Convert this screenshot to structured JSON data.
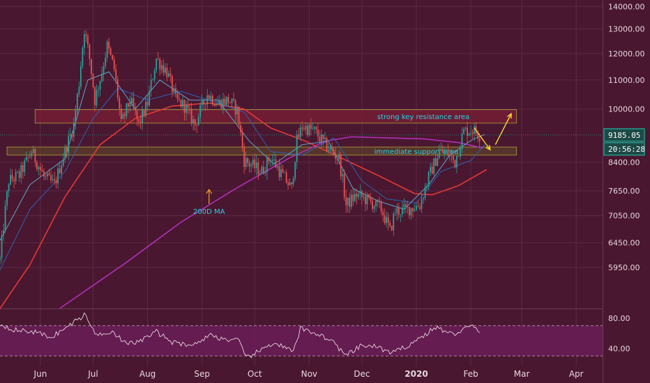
{
  "colors": {
    "background": "#4a1730",
    "grid": "#5c2a42",
    "candle_up": "#26a69a",
    "candle_down": "#ef5350",
    "ma_fast": "#5aa7c9",
    "ma_mid": "#2a63b8",
    "ma_slow": "#e53935",
    "ma_200": "#b030b8",
    "rsi_line": "#e8d6e0",
    "rsi_band": "#6a1d57",
    "resistance_fill": "#7a1f36",
    "support_fill": "#5c3f2a",
    "zone_border": "#9a8a3a",
    "annotation_text": "#27d3e0",
    "arrow": "#f5e02a",
    "price_tag_bg": "#1d4a46",
    "price_tag_border": "#1ec8b0"
  },
  "chart_data": {
    "type": "candlestick",
    "x_start": "2019-05-09",
    "x_end": "2020-04-16",
    "x_ticks": [
      {
        "date": "2019-06-01",
        "label": "Jun",
        "bold": false
      },
      {
        "date": "2019-07-01",
        "label": "Jul",
        "bold": false
      },
      {
        "date": "2019-08-01",
        "label": "Aug",
        "bold": false
      },
      {
        "date": "2019-09-01",
        "label": "Sep",
        "bold": false
      },
      {
        "date": "2019-10-01",
        "label": "Oct",
        "bold": false
      },
      {
        "date": "2019-11-01",
        "label": "Nov",
        "bold": false
      },
      {
        "date": "2019-12-01",
        "label": "Dec",
        "bold": false
      },
      {
        "date": "2020-01-01",
        "label": "2020",
        "bold": true
      },
      {
        "date": "2020-02-01",
        "label": "Feb",
        "bold": false
      },
      {
        "date": "2020-03-01",
        "label": "Mar",
        "bold": false
      },
      {
        "date": "2020-04-01",
        "label": "Apr",
        "bold": false
      }
    ],
    "price_axis": {
      "scale": "log",
      "ylim": [
        5200,
        14300
      ],
      "ticks": [
        {
          "value": 14000,
          "label": "14000.00"
        },
        {
          "value": 13000,
          "label": "13000.00"
        },
        {
          "value": 12000,
          "label": "12000.00"
        },
        {
          "value": 11000,
          "label": "11000.00"
        },
        {
          "value": 10000,
          "label": "10000.00"
        },
        {
          "value": 8400,
          "label": "8400.00"
        },
        {
          "value": 7650,
          "label": "7650.00"
        },
        {
          "value": 7050,
          "label": "7050.00"
        },
        {
          "value": 6450,
          "label": "6450.00"
        },
        {
          "value": 5950,
          "label": "5950.00"
        }
      ]
    },
    "close_path": [
      [
        "2019-05-09",
        6100
      ],
      [
        "2019-05-14",
        7900
      ],
      [
        "2019-05-20",
        8050
      ],
      [
        "2019-05-27",
        8700
      ],
      [
        "2019-06-03",
        8000
      ],
      [
        "2019-06-09",
        7800
      ],
      [
        "2019-06-15",
        8700
      ],
      [
        "2019-06-20",
        9500
      ],
      [
        "2019-06-23",
        10900
      ],
      [
        "2019-06-26",
        13000
      ],
      [
        "2019-06-29",
        11800
      ],
      [
        "2019-07-02",
        10300
      ],
      [
        "2019-07-06",
        11300
      ],
      [
        "2019-07-09",
        12300
      ],
      [
        "2019-07-13",
        11400
      ],
      [
        "2019-07-17",
        9500
      ],
      [
        "2019-07-22",
        10300
      ],
      [
        "2019-07-27",
        9500
      ],
      [
        "2019-08-01",
        10200
      ],
      [
        "2019-08-06",
        11800
      ],
      [
        "2019-08-12",
        11300
      ],
      [
        "2019-08-17",
        10300
      ],
      [
        "2019-08-22",
        10100
      ],
      [
        "2019-08-28",
        9500
      ],
      [
        "2019-09-04",
        10500
      ],
      [
        "2019-09-10",
        10200
      ],
      [
        "2019-09-16",
        10300
      ],
      [
        "2019-09-21",
        9950
      ],
      [
        "2019-09-25",
        8450
      ],
      [
        "2019-09-30",
        8300
      ],
      [
        "2019-10-05",
        8150
      ],
      [
        "2019-10-10",
        8550
      ],
      [
        "2019-10-16",
        8100
      ],
      [
        "2019-10-22",
        7700
      ],
      [
        "2019-10-25",
        9000
      ],
      [
        "2019-10-28",
        9450
      ],
      [
        "2019-11-04",
        9300
      ],
      [
        "2019-11-10",
        8900
      ],
      [
        "2019-11-18",
        8500
      ],
      [
        "2019-11-22",
        7300
      ],
      [
        "2019-11-28",
        7550
      ],
      [
        "2019-12-05",
        7400
      ],
      [
        "2019-12-12",
        7200
      ],
      [
        "2019-12-17",
        6700
      ],
      [
        "2019-12-20",
        7150
      ],
      [
        "2019-12-27",
        7200
      ],
      [
        "2020-01-03",
        7300
      ],
      [
        "2020-01-08",
        8000
      ],
      [
        "2020-01-14",
        8700
      ],
      [
        "2020-01-19",
        8650
      ],
      [
        "2020-01-23",
        8400
      ],
      [
        "2020-01-28",
        9300
      ],
      [
        "2020-02-02",
        9350
      ],
      [
        "2020-02-06",
        9185
      ]
    ],
    "ma_200_path": [
      [
        "2019-06-12",
        5200
      ],
      [
        "2019-07-20",
        6050
      ],
      [
        "2019-08-20",
        6900
      ],
      [
        "2019-09-20",
        7700
      ],
      [
        "2019-10-20",
        8500
      ],
      [
        "2019-11-10",
        9000
      ],
      [
        "2019-11-25",
        9130
      ],
      [
        "2019-12-15",
        9100
      ],
      [
        "2020-01-05",
        9070
      ],
      [
        "2020-01-25",
        8960
      ],
      [
        "2020-02-08",
        8800
      ]
    ],
    "ma_slow_path": [
      [
        "2019-05-09",
        5200
      ],
      [
        "2019-05-26",
        6000
      ],
      [
        "2019-06-15",
        7500
      ],
      [
        "2019-07-05",
        8900
      ],
      [
        "2019-07-25",
        9700
      ],
      [
        "2019-08-15",
        10100
      ],
      [
        "2019-09-05",
        10200
      ],
      [
        "2019-09-25",
        10000
      ],
      [
        "2019-10-10",
        9400
      ],
      [
        "2019-10-30",
        9000
      ],
      [
        "2019-11-20",
        8500
      ],
      [
        "2019-12-10",
        8050
      ],
      [
        "2019-12-31",
        7580
      ],
      [
        "2020-01-10",
        7550
      ],
      [
        "2020-01-25",
        7780
      ],
      [
        "2020-02-10",
        8200
      ]
    ],
    "ma_mid_path": [
      [
        "2019-05-09",
        5900
      ],
      [
        "2019-05-26",
        7200
      ],
      [
        "2019-06-15",
        8150
      ],
      [
        "2019-07-01",
        9700
      ],
      [
        "2019-07-15",
        10700
      ],
      [
        "2019-08-01",
        10300
      ],
      [
        "2019-08-20",
        10600
      ],
      [
        "2019-09-10",
        10200
      ],
      [
        "2019-09-25",
        9900
      ],
      [
        "2019-10-10",
        8700
      ],
      [
        "2019-10-28",
        8600
      ],
      [
        "2019-11-15",
        9100
      ],
      [
        "2019-12-01",
        7900
      ],
      [
        "2019-12-15",
        7450
      ],
      [
        "2020-01-01",
        7350
      ],
      [
        "2020-01-15",
        8150
      ],
      [
        "2020-02-01",
        8450
      ],
      [
        "2020-02-09",
        8900
      ]
    ],
    "ma_fast_path": [
      [
        "2019-05-09",
        6500
      ],
      [
        "2019-05-26",
        7800
      ],
      [
        "2019-06-15",
        8500
      ],
      [
        "2019-06-28",
        11000
      ],
      [
        "2019-07-10",
        11300
      ],
      [
        "2019-07-25",
        10000
      ],
      [
        "2019-08-08",
        11000
      ],
      [
        "2019-08-25",
        10300
      ],
      [
        "2019-09-10",
        10300
      ],
      [
        "2019-09-28",
        9000
      ],
      [
        "2019-10-12",
        8350
      ],
      [
        "2019-10-28",
        8900
      ],
      [
        "2019-11-12",
        9000
      ],
      [
        "2019-11-26",
        7700
      ],
      [
        "2019-12-10",
        7400
      ],
      [
        "2019-12-25",
        7200
      ],
      [
        "2020-01-08",
        7800
      ],
      [
        "2020-01-20",
        8600
      ],
      [
        "2020-02-02",
        9050
      ],
      [
        "2020-02-09",
        9200
      ]
    ],
    "zones": [
      {
        "name": "resistance",
        "x_start": "2019-05-29",
        "x_end": "2020-02-27",
        "y_low": 9550,
        "y_high": 9980,
        "label": "strong key resistance area",
        "label_date": "2020-01-05"
      },
      {
        "name": "support",
        "x_start": "2019-05-13",
        "x_end": "2020-02-27",
        "y_low": 8600,
        "y_high": 8830,
        "label": "immediate support area",
        "label_date": "2020-01-01"
      }
    ],
    "annotations": [
      {
        "text": "200D MA",
        "date": "2019-09-05",
        "value": 7160,
        "arrow_to_value": 7680
      }
    ],
    "last_price": {
      "value": 9185,
      "label": "9185.05",
      "countdown": "20:56:28"
    },
    "projection_arrows": [
      {
        "from": [
          "2020-02-03",
          9400
        ],
        "to": [
          "2020-02-12",
          8750
        ]
      },
      {
        "from": [
          "2020-02-15",
          8900
        ],
        "to": [
          "2020-02-24",
          9850
        ]
      }
    ],
    "rsi": {
      "ylim": [
        20,
        90
      ],
      "ticks": [
        {
          "value": 80,
          "label": "80.00"
        },
        {
          "value": 40,
          "label": "40.00"
        }
      ],
      "band": [
        30,
        70
      ],
      "path": [
        [
          "2019-05-09",
          72
        ],
        [
          "2019-05-18",
          64
        ],
        [
          "2019-05-28",
          62
        ],
        [
          "2019-06-07",
          55
        ],
        [
          "2019-06-15",
          66
        ],
        [
          "2019-06-22",
          78
        ],
        [
          "2019-06-27",
          85
        ],
        [
          "2019-07-02",
          58
        ],
        [
          "2019-07-12",
          63
        ],
        [
          "2019-07-20",
          45
        ],
        [
          "2019-07-28",
          50
        ],
        [
          "2019-08-06",
          62
        ],
        [
          "2019-08-16",
          47
        ],
        [
          "2019-08-28",
          45
        ],
        [
          "2019-09-05",
          58
        ],
        [
          "2019-09-14",
          52
        ],
        [
          "2019-09-22",
          50
        ],
        [
          "2019-09-26",
          27
        ],
        [
          "2019-10-05",
          38
        ],
        [
          "2019-10-12",
          48
        ],
        [
          "2019-10-23",
          35
        ],
        [
          "2019-10-27",
          66
        ],
        [
          "2019-11-05",
          60
        ],
        [
          "2019-11-14",
          50
        ],
        [
          "2019-11-22",
          30
        ],
        [
          "2019-12-01",
          44
        ],
        [
          "2019-12-10",
          42
        ],
        [
          "2019-12-18",
          33
        ],
        [
          "2019-12-28",
          45
        ],
        [
          "2020-01-06",
          58
        ],
        [
          "2020-01-12",
          68
        ],
        [
          "2020-01-22",
          58
        ],
        [
          "2020-01-28",
          66
        ],
        [
          "2020-02-02",
          69
        ],
        [
          "2020-02-06",
          62
        ]
      ]
    }
  }
}
